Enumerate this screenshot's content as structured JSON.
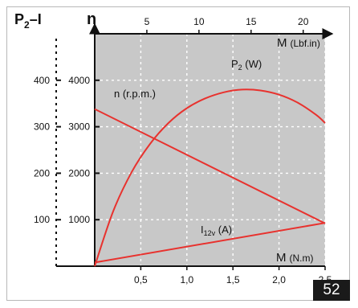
{
  "chart_data": {
    "type": "line",
    "axes": {
      "left_outer": {
        "title_main": "P",
        "title_sub": "2",
        "title_tail": "–I",
        "ticks": [
          100,
          200,
          300,
          400
        ],
        "range": [
          0,
          500
        ]
      },
      "left_inner": {
        "title": "n",
        "ticks": [
          1000,
          2000,
          3000,
          4000
        ],
        "range": [
          0,
          5000
        ]
      },
      "bottom": {
        "label_main": "M",
        "label_unit": "(N.m)",
        "ticks": [
          "0,5",
          "1,0",
          "1,5",
          "2,0",
          "2,5"
        ],
        "tick_values": [
          0.5,
          1.0,
          1.5,
          2.0,
          2.5
        ],
        "range": [
          0,
          2.5
        ]
      },
      "top": {
        "label_main": "M",
        "label_unit": "(Lbf.in)",
        "ticks": [
          5,
          10,
          15,
          20
        ],
        "range": [
          0,
          22.1
        ]
      }
    },
    "grid": true,
    "series": [
      {
        "name": "n (r.p.m.)",
        "axis": "n",
        "color": "#e8322e",
        "x": [
          0,
          2.5
        ],
        "y": [
          3380,
          920
        ]
      },
      {
        "name_main": "P",
        "name_sub": "2",
        "name_tail": " (W)",
        "axis": "P2-I",
        "color": "#e8322e",
        "x": [
          0,
          0.2,
          0.4,
          0.6,
          0.8,
          1.0,
          1.2,
          1.4,
          1.6,
          1.8,
          2.0,
          2.2,
          2.4,
          2.5
        ],
        "y": [
          0,
          118,
          202,
          263,
          308,
          340,
          361,
          374,
          380,
          378,
          369,
          352,
          326,
          308
        ]
      },
      {
        "name_main": "I",
        "name_sub": "12v",
        "name_tail": " (A)",
        "axis": "P2-I",
        "color": "#e8322e",
        "x": [
          0,
          2.5
        ],
        "y": [
          8,
          93
        ]
      }
    ]
  },
  "page_number": "52"
}
